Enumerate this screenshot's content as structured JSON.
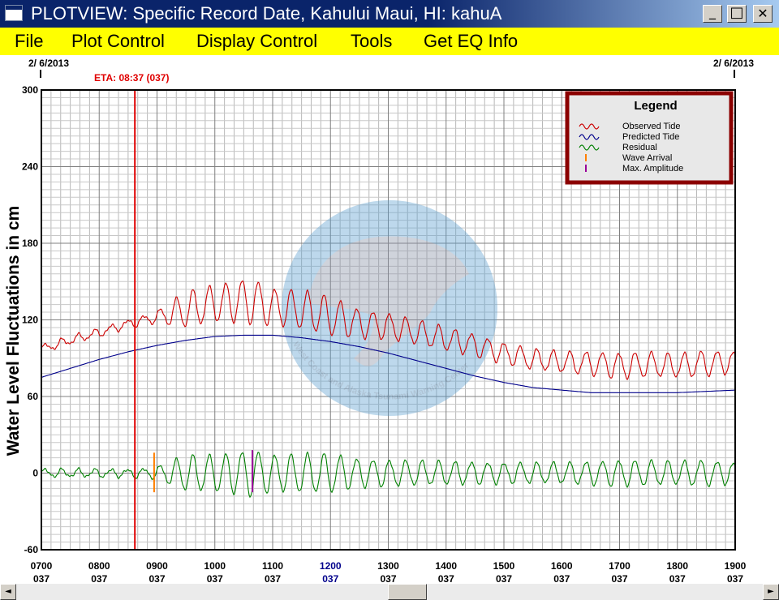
{
  "window": {
    "title": "PLOTVIEW: Specific Record Date, Kahului Maui, HI: kahuA",
    "minimize_symbol": "_",
    "maximize_symbol": "□",
    "close_symbol": "✕"
  },
  "menu": {
    "items": [
      "File",
      "Plot Control",
      "Display Control",
      "Tools",
      "Get EQ Info"
    ]
  },
  "scrollbar": {
    "left_arrow": "◄",
    "right_arrow": "►"
  },
  "colors": {
    "title_bar": "#0a246a",
    "menu_bar": "#ffff00",
    "observed": "#cc0000",
    "predicted": "#00008b",
    "residual": "#008000",
    "wave_arrival": "#ff7f00",
    "max_amplitude": "#990099",
    "eta_line": "#e00000",
    "legend_border": "#8b0000",
    "highlight_tick": "#00008b"
  },
  "chart_data": {
    "type": "line",
    "date_left": "2/ 6/2013",
    "date_right": "2/ 6/2013",
    "ylabel": "Water Level Fluctuations in cm",
    "ylim": [
      -60,
      300
    ],
    "yticks": [
      -60,
      0,
      60,
      120,
      180,
      240,
      300
    ],
    "xlim": [
      7,
      19
    ],
    "xtick_times": [
      "0700",
      "0800",
      "0900",
      "1000",
      "1100",
      "1200",
      "1300",
      "1400",
      "1500",
      "1600",
      "1700",
      "1800",
      "1900"
    ],
    "xtick_day": "037",
    "highlight_tick": "1200",
    "grid": true,
    "eta": {
      "label": "ETA: 08:37 (037)",
      "x": 8.617
    },
    "wave_arrival": {
      "x": 8.95,
      "ymin": -15,
      "ymax": 16
    },
    "max_amplitude": {
      "x": 10.65,
      "ymin": -15,
      "ymax": 18
    },
    "watermark_text": "West Coast and Alaska Tsunami Warning Center",
    "legend": {
      "title": "Legend",
      "placement": "top-right",
      "entries": [
        "Observed Tide",
        "Predicted Tide",
        "Residual",
        "Wave Arrival",
        "Max. Amplitude"
      ]
    },
    "series": [
      {
        "name": "Observed Tide",
        "x": [
          7.0,
          7.5,
          8.0,
          8.5,
          9.0,
          9.5,
          10.0,
          10.3,
          10.6,
          11.0,
          11.5,
          12.0,
          12.5,
          13.0,
          13.5,
          14.0,
          14.5,
          15.0,
          15.5,
          16.0,
          16.5,
          17.0,
          17.5,
          18.0,
          18.5,
          19.0
        ],
        "y": [
          97,
          104,
          110,
          117,
          122,
          128,
          133,
          134,
          135,
          130,
          128,
          123,
          117,
          115,
          110,
          105,
          100,
          94,
          89,
          87,
          86,
          84,
          85,
          84,
          86,
          87
        ]
      },
      {
        "name": "Predicted Tide",
        "x": [
          7.0,
          7.5,
          8.0,
          8.5,
          9.0,
          9.5,
          10.0,
          10.5,
          11.0,
          11.5,
          12.0,
          12.5,
          13.0,
          13.5,
          14.0,
          14.5,
          15.0,
          15.5,
          16.0,
          16.5,
          17.0,
          17.5,
          18.0,
          18.5,
          19.0
        ],
        "y": [
          75,
          82,
          89,
          95,
          100,
          104,
          107,
          108,
          108,
          106,
          103,
          99,
          94,
          88,
          82,
          76,
          71,
          67,
          65,
          63,
          63,
          63,
          63,
          64,
          65
        ]
      },
      {
        "name": "Residual",
        "x": [
          7.0,
          8.5,
          8.95,
          9.5,
          10.0,
          10.65,
          11.0,
          11.5,
          12.0,
          12.5,
          13.0,
          14.0,
          15.0,
          16.0,
          17.0,
          18.0,
          18.5,
          19.0
        ],
        "amplitude": [
          3,
          3,
          4,
          14,
          14,
          18,
          14,
          15,
          15,
          11,
          10,
          9,
          8,
          8,
          10,
          9,
          10,
          8
        ],
        "period_minutes": 17
      }
    ]
  }
}
